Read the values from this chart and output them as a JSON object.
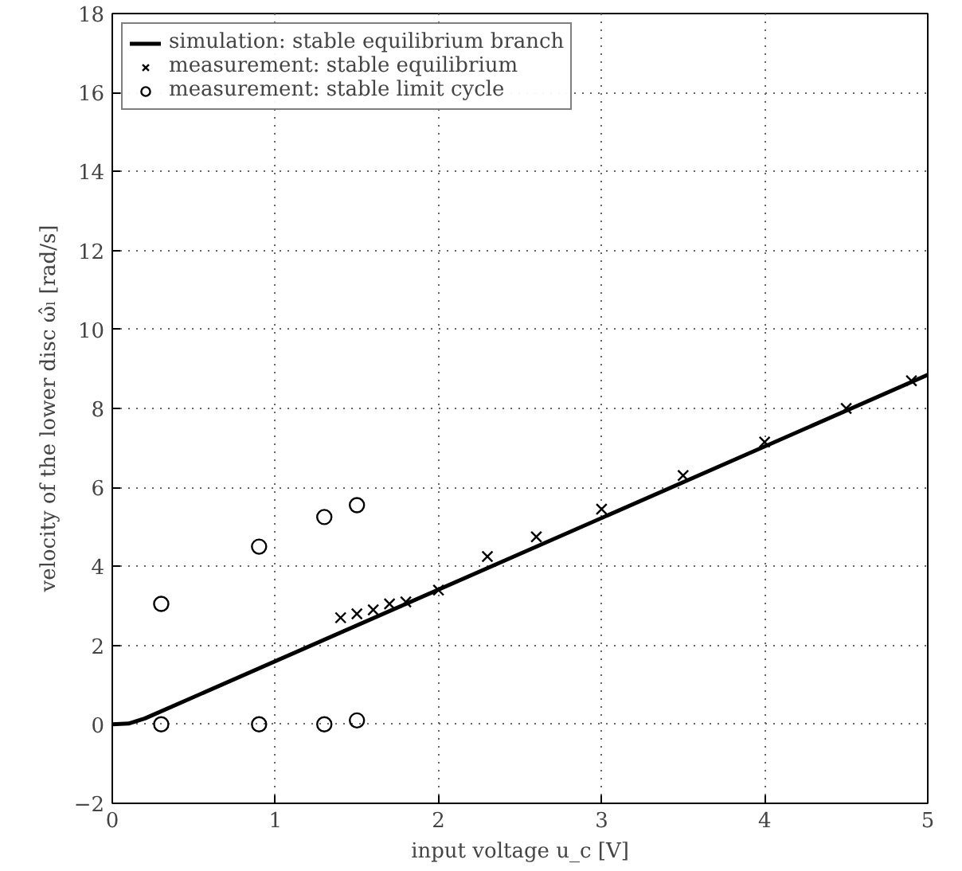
{
  "chart_data": {
    "type": "scatter",
    "xlabel": "input voltage u_c [V]",
    "ylabel": "velocity of the lower disc ω̂ₗ [rad/s]",
    "xlim": [
      0,
      5
    ],
    "ylim": [
      -2,
      18
    ],
    "xticks": [
      0,
      1,
      2,
      3,
      4,
      5
    ],
    "yticks": [
      -2,
      0,
      2,
      4,
      6,
      8,
      10,
      12,
      14,
      16,
      18
    ],
    "grid": true,
    "legend": "top left",
    "series": [
      {
        "name": "simulation: stable equilibrium branch",
        "type": "line",
        "color": "#000000",
        "marker": "none",
        "line_style": "solid",
        "x": [
          0,
          0.1,
          0.2,
          5
        ],
        "values": [
          0,
          0.02,
          0.15,
          8.85
        ]
      },
      {
        "name": "measurement: stable equilibrium",
        "color": "#000000",
        "marker": "cross",
        "x": [
          1.4,
          1.5,
          1.6,
          1.7,
          1.8,
          2,
          2.3,
          2.6,
          3,
          3.5,
          4,
          4.5,
          4.9
        ],
        "values": [
          2.7,
          2.8,
          2.9,
          3.05,
          3.1,
          3.4,
          4.25,
          4.75,
          5.45,
          6.3,
          7.15,
          8.0,
          8.7
        ]
      },
      {
        "name": "measurement: stable limit cycle",
        "color": "#000000",
        "marker": "circle",
        "x": [
          0.3,
          0.3,
          0.9,
          0.9,
          1.3,
          1.3,
          1.5,
          1.5
        ],
        "values": [
          3.05,
          0,
          4.5,
          0,
          5.25,
          0,
          5.55,
          0.1
        ]
      }
    ]
  }
}
